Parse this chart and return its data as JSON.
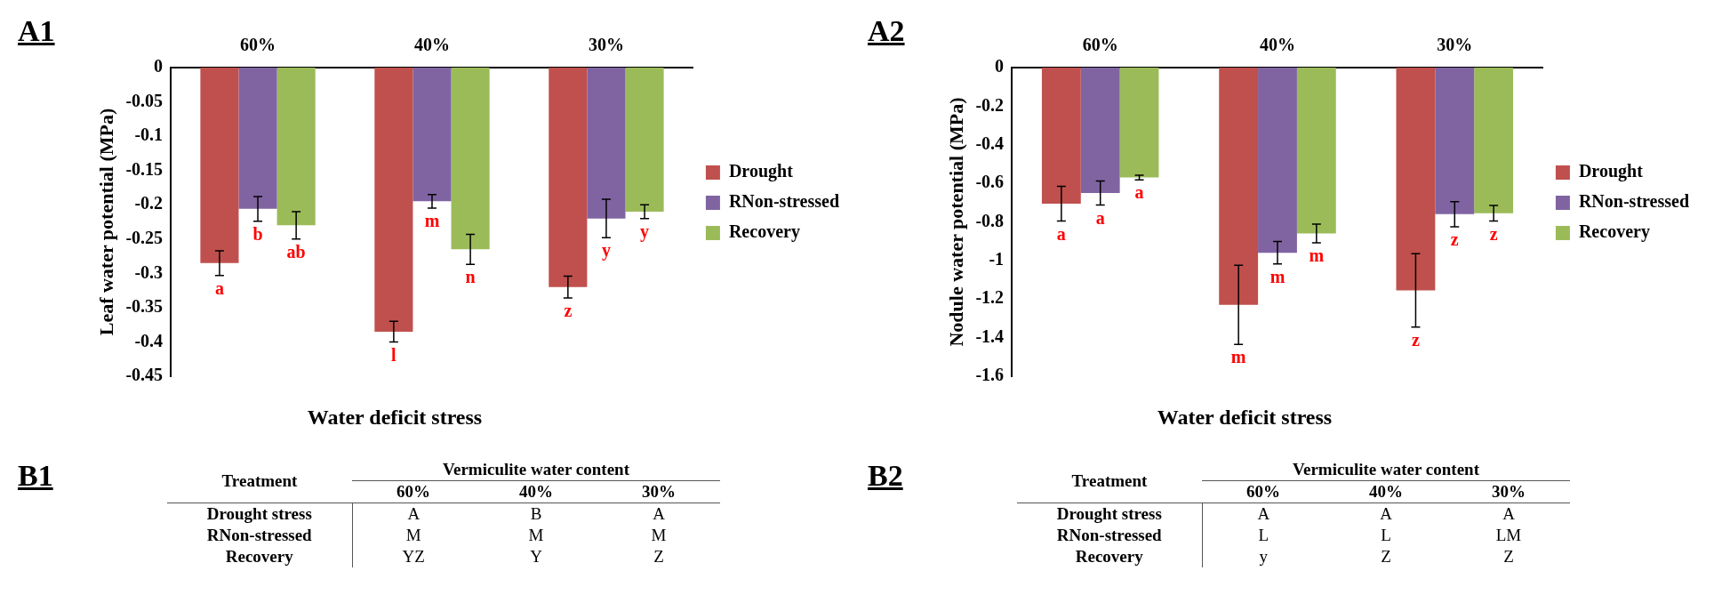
{
  "chart_data": [
    {
      "type": "bar",
      "title": "A1",
      "xlabel": "Water deficit stress",
      "ylabel": "Leaf water potential (MPa)",
      "categories": [
        "60%",
        "40%",
        "30%"
      ],
      "ylim": [
        -0.45,
        0
      ],
      "yticks": [
        0,
        -0.05,
        -0.1,
        -0.15,
        -0.2,
        -0.25,
        -0.3,
        -0.35,
        -0.4,
        -0.45
      ],
      "legend": "right",
      "series": [
        {
          "name": "Drought",
          "color": "#c0504d",
          "values": [
            -0.285,
            -0.385,
            -0.32
          ],
          "errors": [
            0.018,
            0.015,
            0.016
          ],
          "value_labels": [
            "a",
            "l",
            "z"
          ]
        },
        {
          "name": "RNon-stressed",
          "color": "#8064a2",
          "values": [
            -0.206,
            -0.195,
            -0.22
          ],
          "errors": [
            0.018,
            0.01,
            0.028
          ],
          "value_labels": [
            "b",
            "m",
            "y"
          ]
        },
        {
          "name": "Recovery",
          "color": "#9bbb59",
          "values": [
            -0.23,
            -0.265,
            -0.21
          ],
          "errors": [
            0.02,
            0.022,
            0.01
          ],
          "value_labels": [
            "ab",
            "n",
            "y"
          ]
        }
      ]
    },
    {
      "type": "bar",
      "title": "A2",
      "xlabel": "Water deficit stress",
      "ylabel": "Nodule water potential (MPa)",
      "categories": [
        "60%",
        "40%",
        "30%"
      ],
      "ylim": [
        -1.6,
        0
      ],
      "yticks": [
        0,
        -0.2,
        -0.4,
        -0.6,
        -0.8,
        -1,
        -1.2,
        -1.4,
        -1.6
      ],
      "legend": "right",
      "series": [
        {
          "name": "Drought",
          "color": "#c0504d",
          "values": [
            -0.705,
            -1.23,
            -1.155
          ],
          "errors": [
            0.09,
            0.205,
            0.19
          ],
          "value_labels": [
            "a",
            "m",
            "z"
          ]
        },
        {
          "name": "RNon-stressed",
          "color": "#8064a2",
          "values": [
            -0.65,
            -0.96,
            -0.76
          ],
          "errors": [
            0.062,
            0.058,
            0.065
          ],
          "value_labels": [
            "a",
            "m",
            "z"
          ]
        },
        {
          "name": "Recovery",
          "color": "#9bbb59",
          "values": [
            -0.57,
            -0.86,
            -0.755
          ],
          "errors": [
            0.012,
            0.048,
            0.04
          ],
          "value_labels": [
            "a",
            "m",
            "z"
          ]
        }
      ]
    },
    {
      "type": "other",
      "title": "B1",
      "ylabel": "Treatment",
      "xlabel": "Vermiculite water content",
      "categories": [
        "60%",
        "40%",
        "30%"
      ],
      "y_categories": [
        "Drought stress",
        "RNon-stressed",
        "Recovery"
      ],
      "cell_labels": [
        [
          "A",
          "B",
          "A"
        ],
        [
          "M",
          "M",
          "M"
        ],
        [
          "YZ",
          "Y",
          "Z"
        ]
      ]
    },
    {
      "type": "other",
      "title": "B2",
      "ylabel": "Treatment",
      "xlabel": "Vermiculite water content",
      "categories": [
        "60%",
        "40%",
        "30%"
      ],
      "y_categories": [
        "Drought stress",
        "RNon-stressed",
        "Recovery"
      ],
      "cell_labels": [
        [
          "A",
          "A",
          "A"
        ],
        [
          "L",
          "L",
          "LM"
        ],
        [
          "y",
          "Z",
          "Z"
        ]
      ]
    }
  ]
}
